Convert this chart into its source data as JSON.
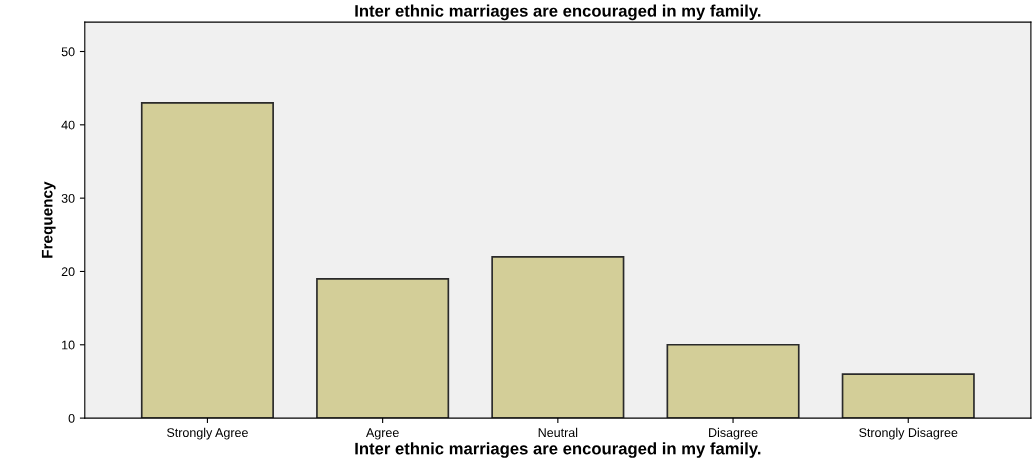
{
  "chart_data": {
    "type": "bar",
    "title": "Inter ethnic marriages are encouraged in my family.",
    "xlabel": "Inter ethnic marriages are encouraged in my family.",
    "ylabel": "Frequency",
    "categories": [
      "Strongly Agree",
      "Agree",
      "Neutral",
      "Disagree",
      "Strongly Disagree"
    ],
    "values": [
      43,
      19,
      22,
      10,
      6
    ],
    "color": "#d3ce98",
    "ylim": [
      0,
      54
    ],
    "yticks": [
      0,
      10,
      20,
      30,
      40,
      50
    ],
    "grid": false
  }
}
